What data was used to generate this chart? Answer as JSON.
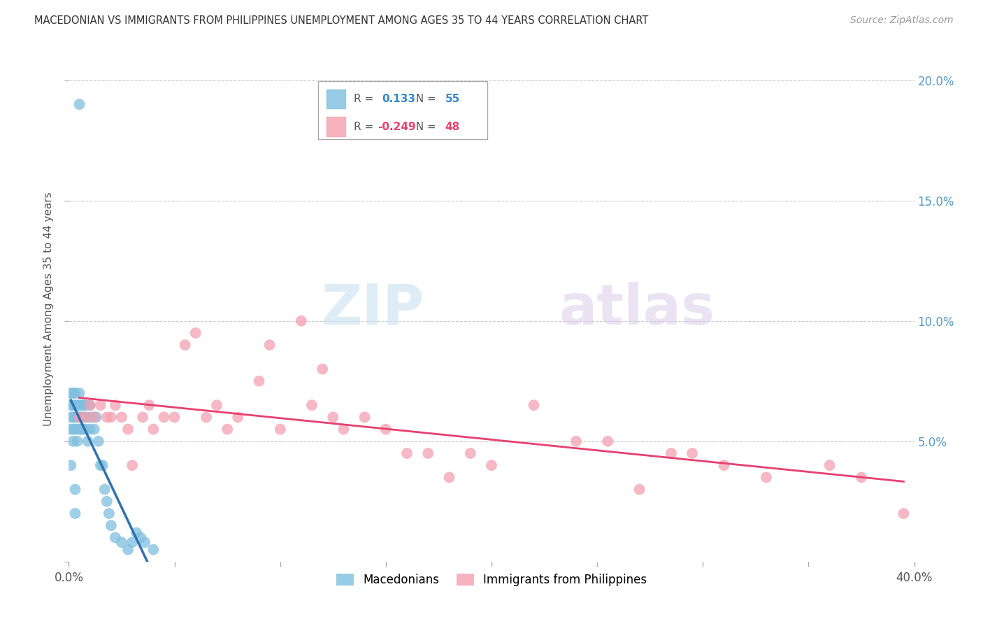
{
  "title": "MACEDONIAN VS IMMIGRANTS FROM PHILIPPINES UNEMPLOYMENT AMONG AGES 35 TO 44 YEARS CORRELATION CHART",
  "source": "Source: ZipAtlas.com",
  "ylabel": "Unemployment Among Ages 35 to 44 years",
  "xlim": [
    0,
    0.4
  ],
  "ylim": [
    0,
    0.21
  ],
  "xticks": [
    0.0,
    0.05,
    0.1,
    0.15,
    0.2,
    0.25,
    0.3,
    0.35,
    0.4
  ],
  "yticks": [
    0.0,
    0.05,
    0.1,
    0.15,
    0.2
  ],
  "legend1_r": "0.133",
  "legend1_n": "55",
  "legend2_r": "-0.249",
  "legend2_n": "48",
  "blue_color": "#7fbfdf",
  "blue_line_color": "#3070b0",
  "pink_color": "#f4a0b0",
  "pink_line_color": "#e84070",
  "blue_dashed_color": "#aaccee",
  "watermark_zip": "ZIP",
  "watermark_atlas": "atlas",
  "blue_dots_x": [
    0.001,
    0.001,
    0.001,
    0.001,
    0.001,
    0.002,
    0.002,
    0.002,
    0.002,
    0.002,
    0.003,
    0.003,
    0.003,
    0.003,
    0.003,
    0.003,
    0.004,
    0.004,
    0.004,
    0.004,
    0.005,
    0.005,
    0.005,
    0.005,
    0.006,
    0.006,
    0.006,
    0.007,
    0.007,
    0.007,
    0.008,
    0.008,
    0.009,
    0.009,
    0.01,
    0.01,
    0.011,
    0.012,
    0.013,
    0.014,
    0.015,
    0.016,
    0.017,
    0.018,
    0.019,
    0.02,
    0.022,
    0.025,
    0.028,
    0.03,
    0.032,
    0.034,
    0.036,
    0.04,
    0.005
  ],
  "blue_dots_y": [
    0.055,
    0.06,
    0.065,
    0.07,
    0.04,
    0.05,
    0.055,
    0.06,
    0.065,
    0.07,
    0.02,
    0.03,
    0.055,
    0.06,
    0.065,
    0.07,
    0.05,
    0.055,
    0.06,
    0.065,
    0.055,
    0.06,
    0.065,
    0.07,
    0.055,
    0.06,
    0.065,
    0.055,
    0.06,
    0.065,
    0.055,
    0.065,
    0.05,
    0.06,
    0.055,
    0.065,
    0.06,
    0.055,
    0.06,
    0.05,
    0.04,
    0.04,
    0.03,
    0.025,
    0.02,
    0.015,
    0.01,
    0.008,
    0.005,
    0.008,
    0.012,
    0.01,
    0.008,
    0.005,
    0.19
  ],
  "pink_dots_x": [
    0.005,
    0.008,
    0.01,
    0.012,
    0.015,
    0.018,
    0.02,
    0.022,
    0.025,
    0.028,
    0.03,
    0.035,
    0.038,
    0.04,
    0.045,
    0.05,
    0.055,
    0.06,
    0.065,
    0.07,
    0.075,
    0.08,
    0.09,
    0.095,
    0.1,
    0.11,
    0.115,
    0.12,
    0.125,
    0.13,
    0.14,
    0.15,
    0.16,
    0.17,
    0.18,
    0.19,
    0.2,
    0.22,
    0.24,
    0.255,
    0.27,
    0.285,
    0.295,
    0.31,
    0.33,
    0.36,
    0.375,
    0.395
  ],
  "pink_dots_y": [
    0.06,
    0.06,
    0.065,
    0.06,
    0.065,
    0.06,
    0.06,
    0.065,
    0.06,
    0.055,
    0.04,
    0.06,
    0.065,
    0.055,
    0.06,
    0.06,
    0.09,
    0.095,
    0.06,
    0.065,
    0.055,
    0.06,
    0.075,
    0.09,
    0.055,
    0.1,
    0.065,
    0.08,
    0.06,
    0.055,
    0.06,
    0.055,
    0.045,
    0.045,
    0.035,
    0.045,
    0.04,
    0.065,
    0.05,
    0.05,
    0.03,
    0.045,
    0.045,
    0.04,
    0.035,
    0.04,
    0.035,
    0.02
  ]
}
